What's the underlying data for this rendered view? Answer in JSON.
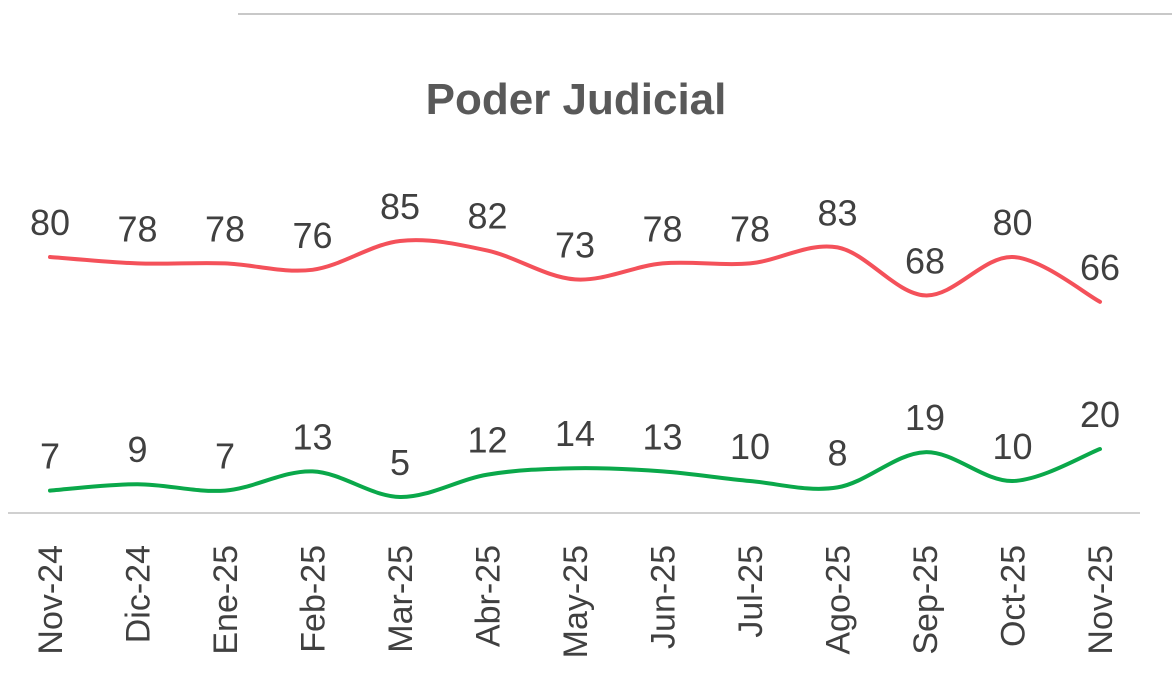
{
  "chart_data": {
    "type": "line",
    "title": "Poder Judicial",
    "categories": [
      "Nov-24",
      "Dic-24",
      "Ene-25",
      "Feb-25",
      "Mar-25",
      "Abr-25",
      "May-25",
      "Jun-25",
      "Jul-25",
      "Ago-25",
      "Sep-25",
      "Oct-25",
      "Nov-25"
    ],
    "series": [
      {
        "color": "#f4515a",
        "values": [
          80,
          78,
          78,
          76,
          85,
          82,
          73,
          78,
          78,
          83,
          68,
          80,
          66
        ]
      },
      {
        "color": "#0aa84a",
        "values": [
          7,
          9,
          7,
          13,
          5,
          12,
          14,
          13,
          10,
          8,
          19,
          10,
          20
        ]
      }
    ],
    "ylim": [
      0,
      100
    ],
    "smooth": true
  }
}
